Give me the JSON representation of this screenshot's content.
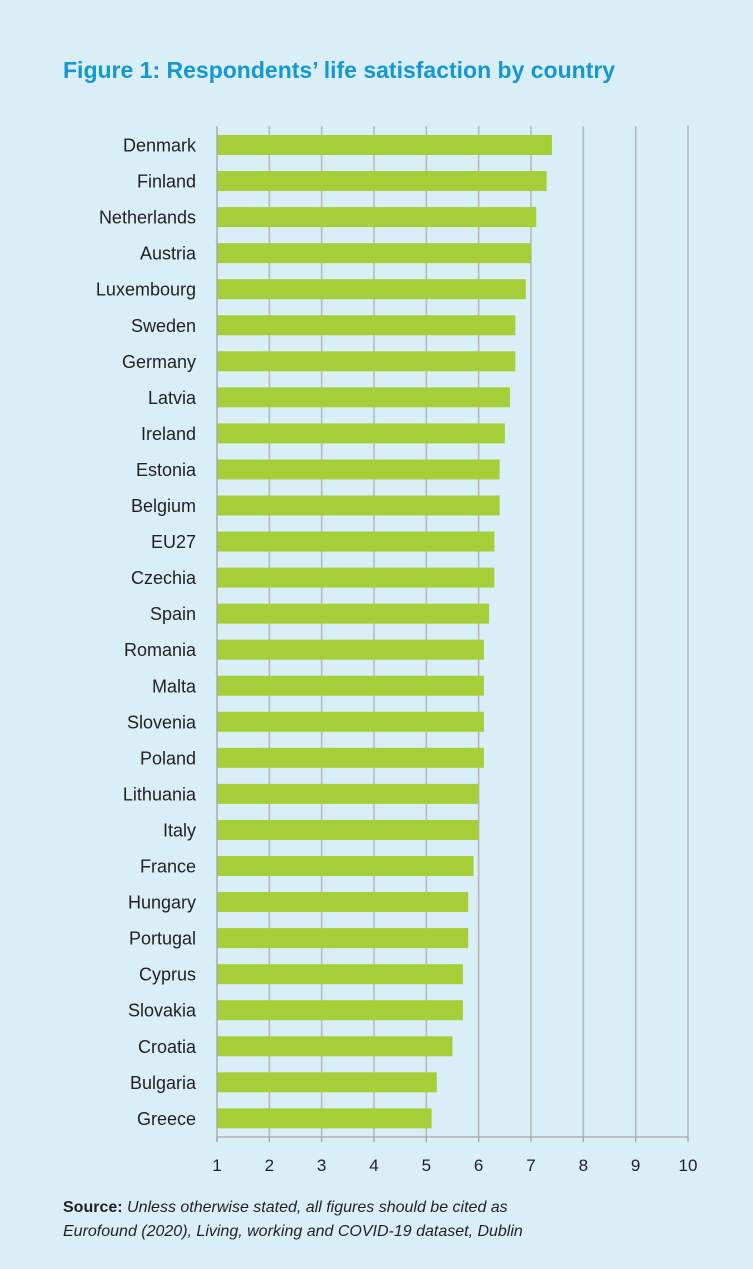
{
  "colors": {
    "background": "#daeef8",
    "title": "#1597cf",
    "bar": "#a6ce39",
    "gridline": "#b9b9b9",
    "axis": "#a6a6a6",
    "text": "#231f20"
  },
  "chart_data": {
    "type": "bar",
    "orientation": "horizontal",
    "title": "Figure 1: Respondents’ life satisfaction by country",
    "xlabel": "",
    "ylabel": "",
    "xlim": [
      1,
      10
    ],
    "xticks": [
      "1",
      "2",
      "3",
      "4",
      "5",
      "6",
      "7",
      "8",
      "9",
      "10"
    ],
    "grid": "vertical",
    "categories": [
      "Denmark",
      "Finland",
      "Netherlands",
      "Austria",
      "Luxembourg",
      "Sweden",
      "Germany",
      "Latvia",
      "Ireland",
      "Estonia",
      "Belgium",
      "EU27",
      "Czechia",
      "Spain",
      "Romania",
      "Malta",
      "Slovenia",
      "Poland",
      "Lithuania",
      "Italy",
      "France",
      "Hungary",
      "Portugal",
      "Cyprus",
      "Slovakia",
      "Croatia",
      "Bulgaria",
      "Greece"
    ],
    "values": [
      7.4,
      7.3,
      7.1,
      7.0,
      6.9,
      6.7,
      6.7,
      6.6,
      6.5,
      6.4,
      6.4,
      6.3,
      6.3,
      6.2,
      6.1,
      6.1,
      6.1,
      6.1,
      6.0,
      6.0,
      5.9,
      5.8,
      5.8,
      5.7,
      5.7,
      5.5,
      5.2,
      5.1
    ]
  },
  "source": {
    "label": "Source:",
    "line1": "Unless otherwise stated, all figures should be cited as",
    "line2": "Eurofound (2020), Living, working and COVID-19 dataset, Dublin"
  }
}
